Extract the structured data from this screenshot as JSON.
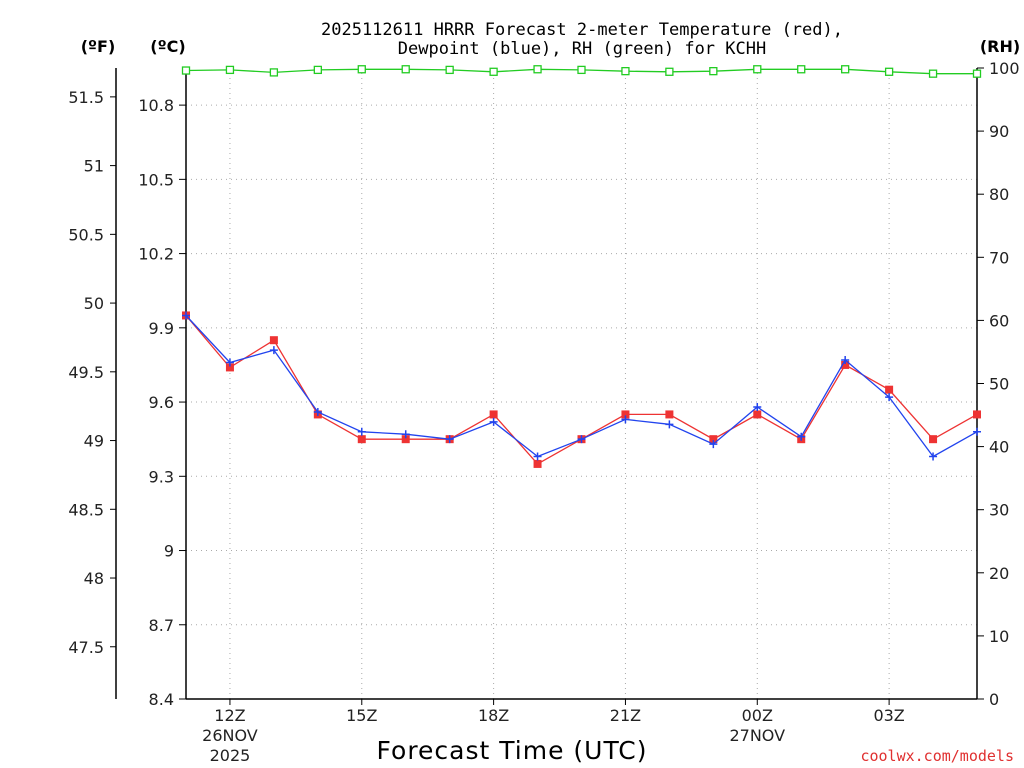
{
  "chart_data": {
    "type": "line",
    "title": "2025112611 HRRR Forecast 2-meter Temperature (red), Dewpoint (blue), RH (green) for KCHH",
    "title_lines": [
      "2025112611 HRRR Forecast 2-meter Temperature (red),",
      "Dewpoint (blue), RH (green) for KCHH"
    ],
    "xlabel": "Forecast Time (UTC)",
    "credit": "coolwx.com/models",
    "units": {
      "fahrenheit": "(ºF)",
      "celsius": "(ºC)",
      "rh": "(RH)"
    },
    "x": [
      11,
      12,
      13,
      14,
      15,
      16,
      17,
      18,
      19,
      20,
      21,
      22,
      23,
      24,
      25,
      26,
      27,
      28,
      29
    ],
    "x_ticks": [
      {
        "x": 12,
        "label": "12Z",
        "sub": [
          "26NOV",
          "2025"
        ]
      },
      {
        "x": 15,
        "label": "15Z",
        "sub": []
      },
      {
        "x": 18,
        "label": "18Z",
        "sub": []
      },
      {
        "x": 21,
        "label": "21Z",
        "sub": []
      },
      {
        "x": 24,
        "label": "00Z",
        "sub": [
          "27NOV"
        ]
      },
      {
        "x": 27,
        "label": "03Z",
        "sub": []
      }
    ],
    "xlim": [
      11,
      29
    ],
    "celsius_axis": {
      "ylim": [
        8.4,
        10.95
      ],
      "ticks": [
        "8.4",
        "8.7",
        "9",
        "9.3",
        "9.6",
        "9.9",
        "10.2",
        "10.5",
        "10.8"
      ]
    },
    "fahrenheit_axis": {
      "ylim": [
        47.12,
        51.71
      ],
      "ticks": [
        "47.5",
        "48",
        "48.5",
        "49",
        "49.5",
        "50",
        "50.5",
        "51",
        "51.5"
      ]
    },
    "rh_axis": {
      "ylim": [
        0,
        100
      ],
      "ticks": [
        "0",
        "10",
        "20",
        "30",
        "40",
        "50",
        "60",
        "70",
        "80",
        "90",
        "100"
      ]
    },
    "series": [
      {
        "name": "Temperature",
        "color": "#ee3333",
        "marker": "square",
        "values": [
          9.95,
          9.74,
          9.85,
          9.55,
          9.45,
          9.45,
          9.45,
          9.55,
          9.35,
          9.45,
          9.55,
          9.55,
          9.45,
          9.55,
          9.45,
          9.75,
          9.65,
          9.45,
          9.55
        ]
      },
      {
        "name": "Dewpoint",
        "color": "#2244ee",
        "marker": "plus",
        "values": [
          9.95,
          9.76,
          9.81,
          9.56,
          9.48,
          9.47,
          9.45,
          9.52,
          9.38,
          9.45,
          9.53,
          9.51,
          9.43,
          9.58,
          9.46,
          9.77,
          9.62,
          9.38,
          9.48
        ]
      },
      {
        "name": "RH",
        "color": "#22cc22",
        "marker": "open-square",
        "values": [
          99.6,
          99.7,
          99.3,
          99.7,
          99.8,
          99.8,
          99.7,
          99.4,
          99.8,
          99.7,
          99.5,
          99.4,
          99.5,
          99.8,
          99.8,
          99.8,
          99.4,
          99.1,
          99.1
        ]
      }
    ]
  }
}
